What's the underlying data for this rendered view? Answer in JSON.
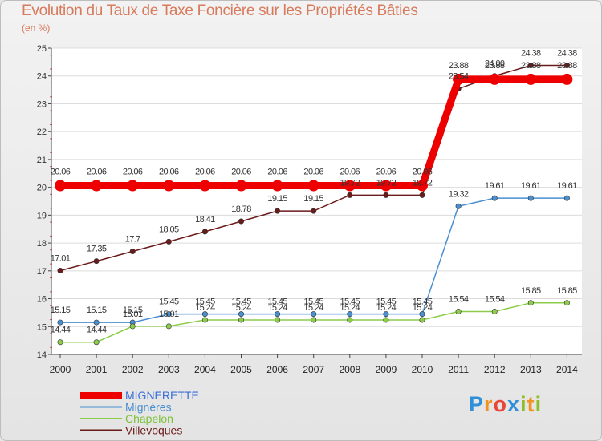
{
  "title": "Evolution du Taux de Taxe Foncière sur les Propriétés Bâties",
  "subtitle": "(en %)",
  "logo": {
    "letters": [
      "P",
      "r",
      "o",
      "x",
      "i",
      "t",
      "i"
    ],
    "colors": [
      "#2f8fd8",
      "#f29222",
      "#e9463a",
      "#2f8fd8",
      "#8cbd2a",
      "#f29222",
      "#8cbd2a"
    ]
  },
  "chart_data": {
    "type": "line",
    "title": "Evolution du Taux de Taxe Foncière sur les Propriétés Bâties",
    "ylabel": "(en %)",
    "xlabel": "",
    "ylim": [
      14,
      25
    ],
    "yticks": [
      14,
      15,
      16,
      17,
      18,
      19,
      20,
      21,
      22,
      23,
      24,
      25
    ],
    "categories": [
      "2000",
      "2001",
      "2002",
      "2003",
      "2004",
      "2005",
      "2006",
      "2007",
      "2008",
      "2009",
      "2010",
      "2011",
      "2012",
      "2013",
      "2014"
    ],
    "series": [
      {
        "name": "MIGNERETTE",
        "color": "#ee0000",
        "values": [
          20.06,
          20.06,
          20.06,
          20.06,
          20.06,
          20.06,
          20.06,
          20.06,
          20.06,
          20.06,
          20.06,
          23.88,
          23.88,
          23.88,
          23.88
        ],
        "labels": [
          "20.06",
          "20.06",
          "20.06",
          "20.06",
          "20.06",
          "20.06",
          "20.06",
          "20.06",
          "20.06",
          "20.06",
          "20.06",
          "23.88",
          "23.88",
          "23.88",
          "23.88"
        ]
      },
      {
        "name": "Mignères",
        "color": "#4a8fd0",
        "values": [
          15.15,
          15.15,
          15.15,
          15.45,
          15.45,
          15.45,
          15.45,
          15.45,
          15.45,
          15.45,
          15.45,
          19.32,
          19.61,
          19.61,
          19.61
        ],
        "labels": [
          "15.15",
          "15.15",
          "15.15",
          "15.45",
          "15.45",
          "15.45",
          "15.45",
          "15.45",
          "15.45",
          "15.45",
          "15.45",
          "19.32",
          "19.61",
          "19.61",
          "19.61"
        ]
      },
      {
        "name": "Chapelon",
        "color": "#8ccc4a",
        "values": [
          14.44,
          14.44,
          15.01,
          15.01,
          15.24,
          15.24,
          15.24,
          15.24,
          15.24,
          15.24,
          15.24,
          15.54,
          15.54,
          15.85,
          15.85
        ],
        "labels": [
          "14.44",
          "14.44",
          "15.01",
          "15.01",
          "15.24",
          "15.24",
          "15.24",
          "15.24",
          "15.24",
          "15.24",
          "15.24",
          "15.54",
          "15.54",
          "15.85",
          "15.85"
        ]
      },
      {
        "name": "Villevoques",
        "color": "#6b1a1a",
        "values": [
          17.01,
          17.35,
          17.7,
          18.05,
          18.41,
          18.78,
          19.15,
          19.15,
          19.72,
          19.72,
          19.72,
          23.54,
          24.0,
          24.38,
          24.38
        ],
        "labels": [
          "17.01",
          "17.35",
          "17.7",
          "18.05",
          "18.41",
          "18.78",
          "19.15",
          "19.15",
          "19.72",
          "19.72",
          "19.72",
          "23.54",
          "24.00",
          "24.38",
          "24.38"
        ]
      }
    ],
    "legend_position": "bottom-left"
  }
}
